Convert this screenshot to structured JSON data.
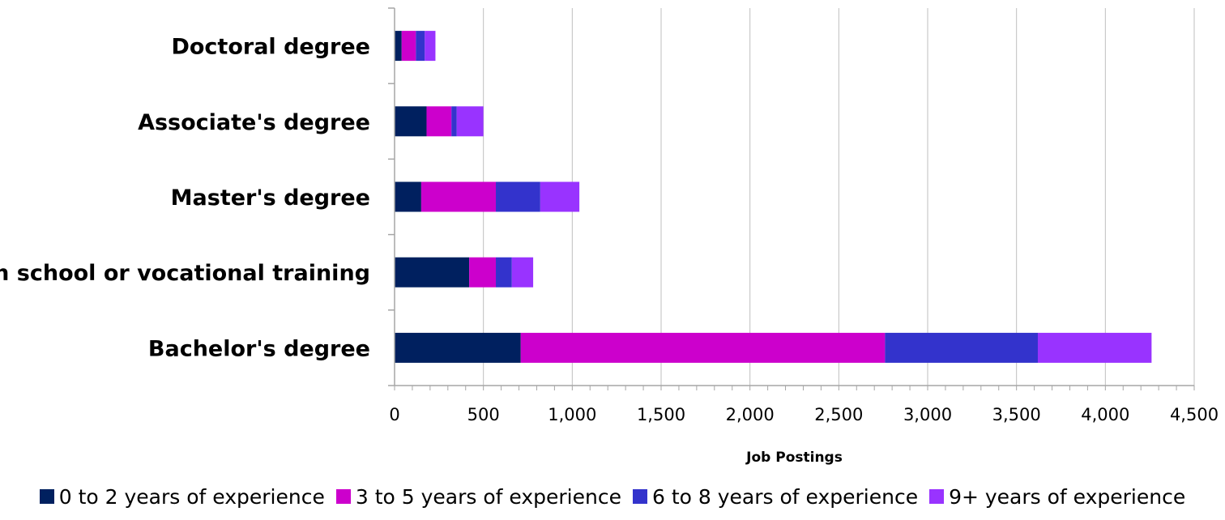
{
  "chart_data": {
    "type": "bar",
    "orientation": "horizontal",
    "stacked": true,
    "categories": [
      "Doctoral degree",
      "Associate's degree",
      "Master's degree",
      "High school or vocational training",
      "Bachelor's degree"
    ],
    "series": [
      {
        "name": "0 to 2 years of experience",
        "color": "#00205f",
        "values": [
          40,
          180,
          150,
          420,
          710
        ]
      },
      {
        "name": "3 to 5 years of experience",
        "color": "#cc00cc",
        "values": [
          80,
          140,
          420,
          150,
          2050
        ]
      },
      {
        "name": "6 to 8 years of experience",
        "color": "#3333cc",
        "values": [
          50,
          30,
          250,
          90,
          860
        ]
      },
      {
        "name": "9+ years of experience",
        "color": "#9933ff",
        "values": [
          60,
          150,
          220,
          120,
          640
        ]
      }
    ],
    "xlabel": "Job Postings",
    "ylabel": "",
    "xlim": [
      0,
      4500
    ],
    "xticks": [
      0,
      500,
      1000,
      1500,
      2000,
      2500,
      3000,
      3500,
      4000,
      4500
    ],
    "xtick_labels": [
      "0",
      "500",
      "1,000",
      "1,500",
      "2,000",
      "2,500",
      "3,000",
      "3,500",
      "4,000",
      "4,500"
    ],
    "grid": "vertical",
    "legend_position": "bottom"
  }
}
